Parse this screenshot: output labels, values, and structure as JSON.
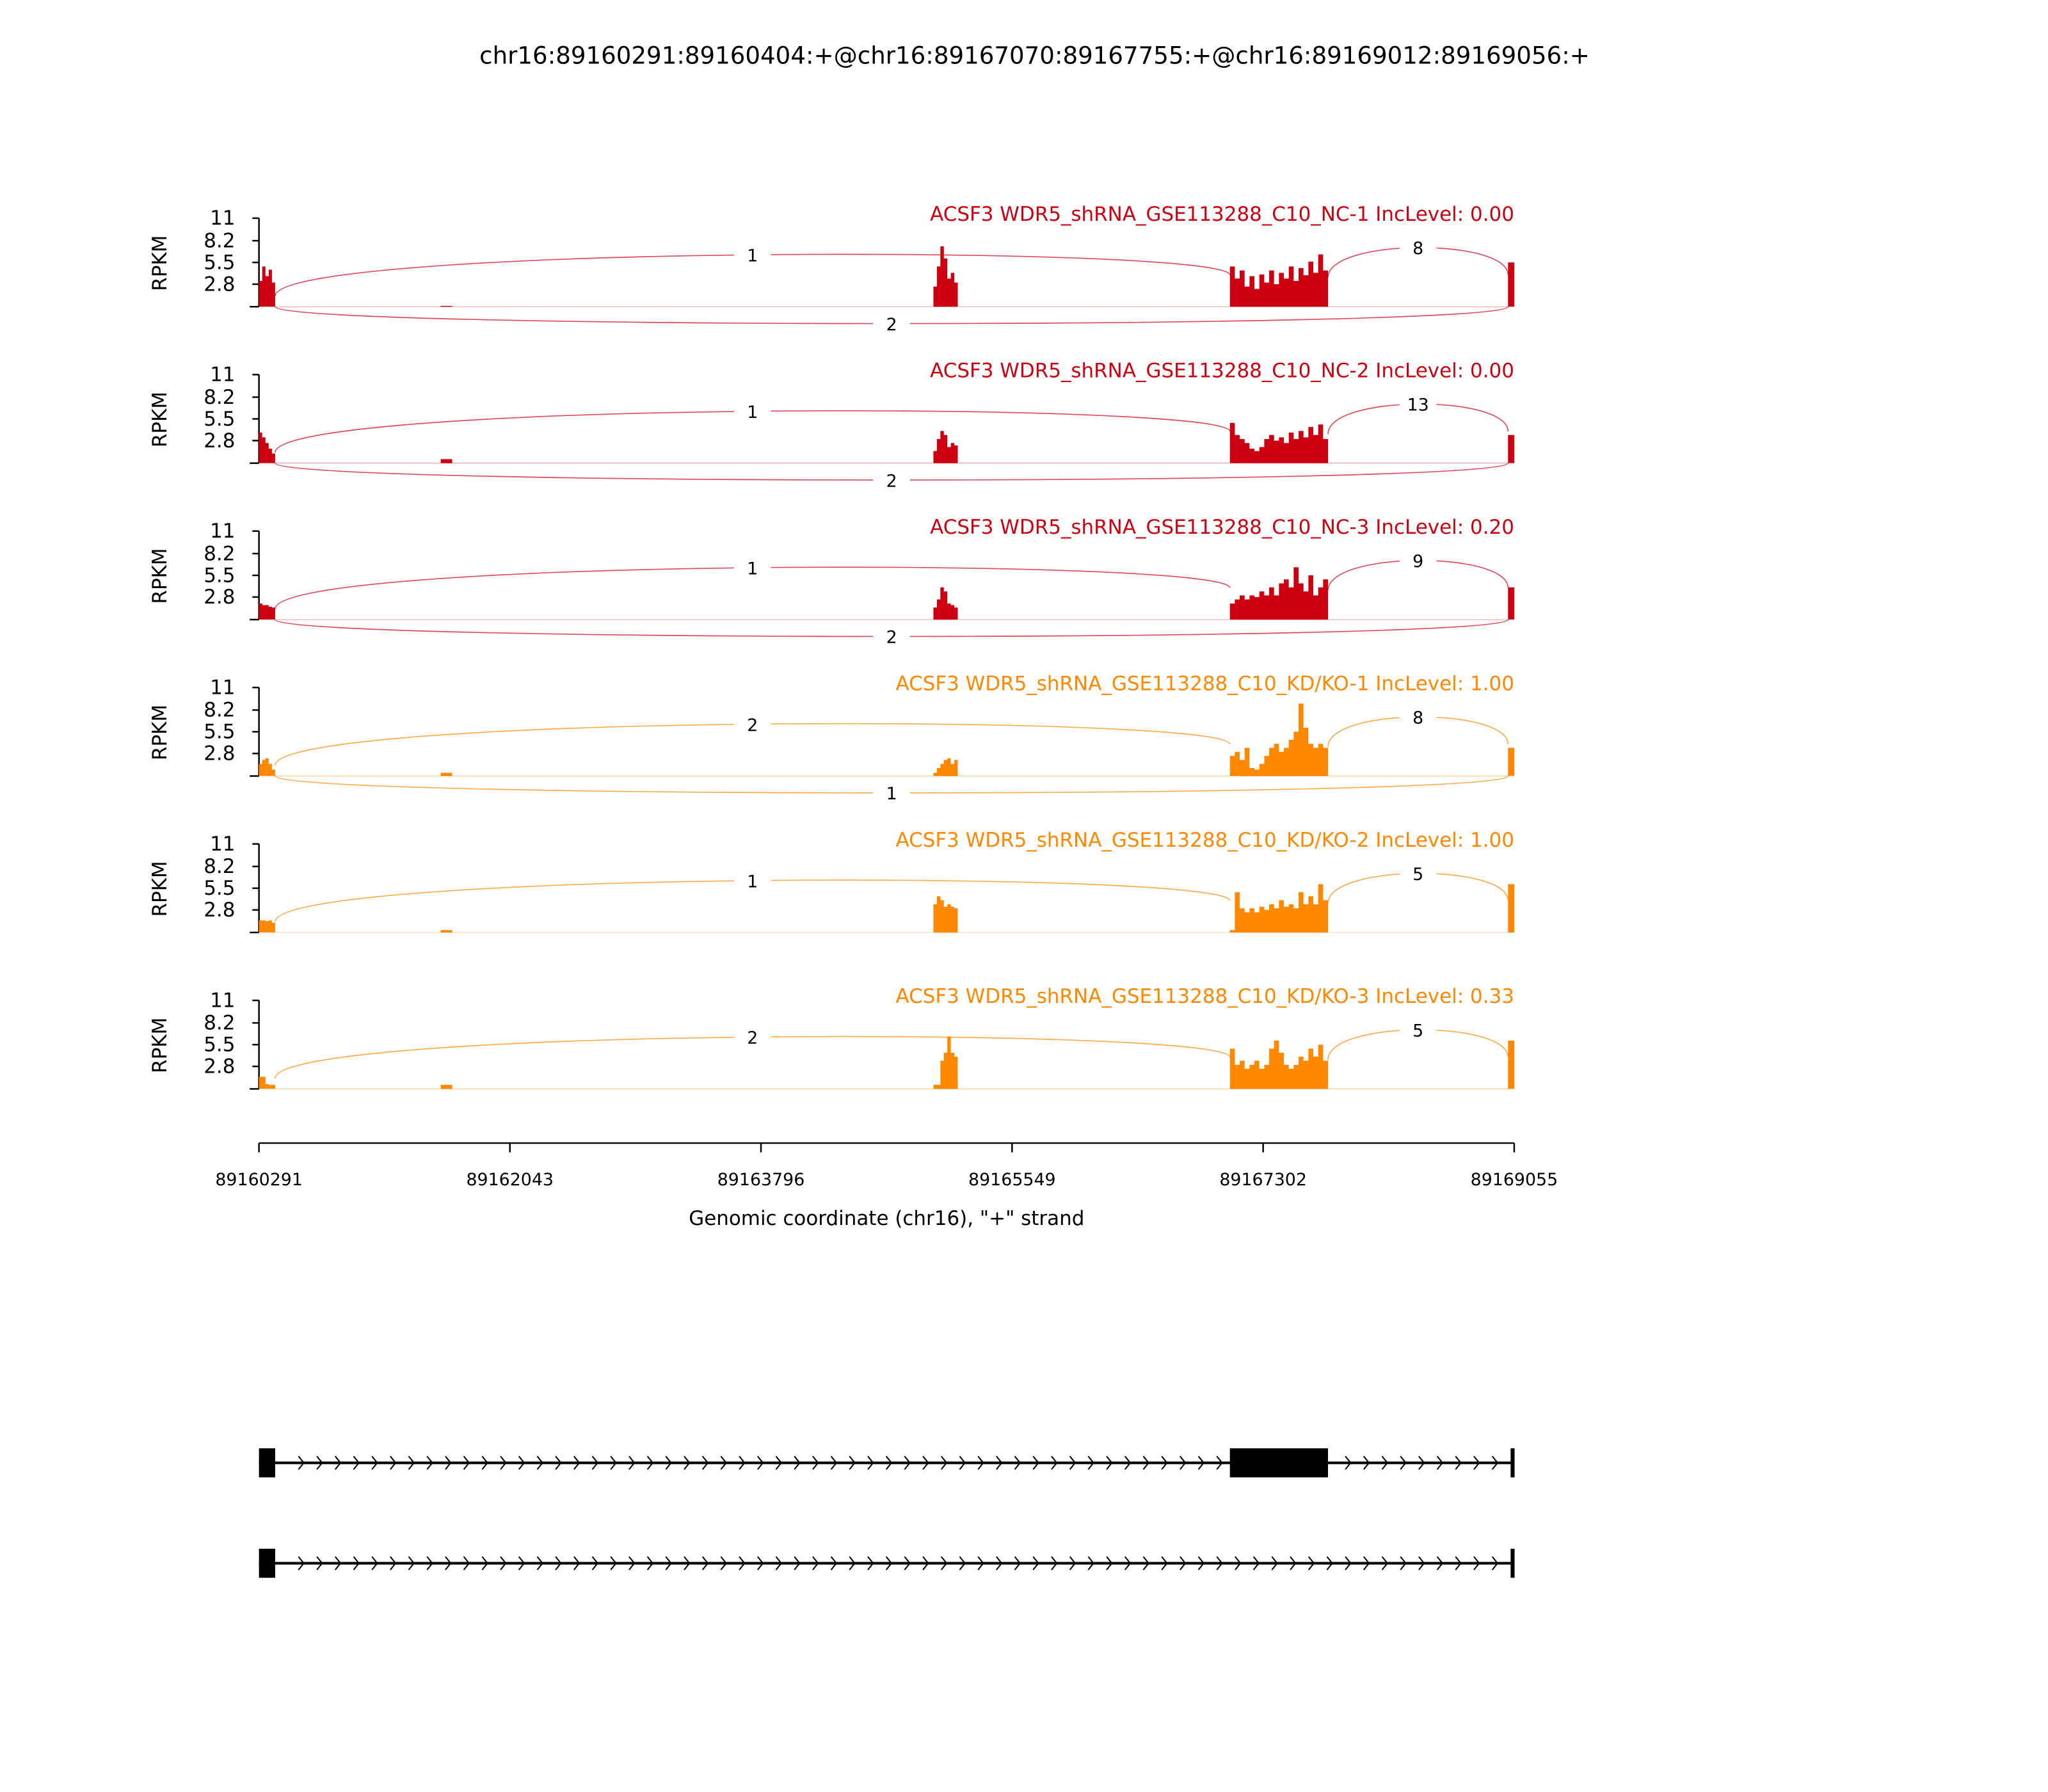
{
  "chart_data": {
    "type": "area",
    "title": "chr16:89160291:89160404:+@chr16:89167070:89167755:+@chr16:89169012:89169056:+",
    "xlabel": "Genomic coordinate (chr16), \"+\" strand",
    "ylabel": "RPKM",
    "xlim": [
      89160291,
      89169055
    ],
    "ylim": [
      0,
      11
    ],
    "yticks": [
      "11",
      "8.2",
      "5.5",
      "2.8"
    ],
    "ytick_values": [
      11,
      8.2,
      5.5,
      2.8
    ],
    "xticks": [
      89160291,
      89162043,
      89163796,
      89165549,
      89167302,
      89169055
    ],
    "regions": {
      "exon1": [
        89160291,
        89160404
      ],
      "small": [
        89161560,
        89161640
      ],
      "peak": [
        89165000,
        89165170
      ],
      "exon2": [
        89167070,
        89167755
      ],
      "exon3": [
        89169012,
        89169056
      ]
    },
    "samples": [
      {
        "title": "ACSF3 WDR5_shRNA_GSE113288_C10_NC-1 IncLevel: 0.00",
        "color": "#cc0011",
        "junctions": {
          "upstream": "1",
          "downstream": "8",
          "skip": "2"
        },
        "coverage": {
          "exon1": [
            3.2,
            5.0,
            3.8,
            4.6,
            3.0
          ],
          "small": [
            0.1
          ],
          "peak": [
            2.5,
            5.0,
            7.5,
            6.0,
            3.5,
            4.2,
            3.0
          ],
          "exon2": [
            5.0,
            3.5,
            4.5,
            2.5,
            3.8,
            2.2,
            4.0,
            3.0,
            4.5,
            2.8,
            4.2,
            3.5,
            5.0,
            3.2,
            4.8,
            3.9,
            5.6,
            4.2,
            6.5,
            4.5
          ],
          "exon3": [
            5.5
          ]
        }
      },
      {
        "title": "ACSF3 WDR5_shRNA_GSE113288_C10_NC-2 IncLevel: 0.00",
        "color": "#cc0011",
        "junctions": {
          "upstream": "1",
          "downstream": "13",
          "skip": "2"
        },
        "coverage": {
          "exon1": [
            3.8,
            3.2,
            2.5,
            1.8,
            1.2
          ],
          "small": [
            0.5
          ],
          "peak": [
            1.5,
            3.0,
            4.0,
            3.5,
            2.0,
            2.5,
            2.2
          ],
          "exon2": [
            5.0,
            3.5,
            3.0,
            2.5,
            1.8,
            1.5,
            2.0,
            3.0,
            3.5,
            2.8,
            3.2,
            2.5,
            3.8,
            3.0,
            4.0,
            3.2,
            4.5,
            3.5,
            4.8,
            3.0
          ],
          "exon3": [
            3.5
          ]
        }
      },
      {
        "title": "ACSF3 WDR5_shRNA_GSE113288_C10_NC-3 IncLevel: 0.20",
        "color": "#cc0011",
        "junctions": {
          "upstream": "1",
          "downstream": "9",
          "skip": "2"
        },
        "coverage": {
          "exon1": [
            2.0,
            1.8,
            1.8,
            1.6,
            1.5
          ],
          "small": [
            0.0
          ],
          "peak": [
            1.5,
            2.5,
            4.0,
            3.5,
            2.0,
            1.8,
            1.5
          ],
          "exon2": [
            2.0,
            2.5,
            3.0,
            2.5,
            3.0,
            2.8,
            3.5,
            3.0,
            4.0,
            3.0,
            4.5,
            5.0,
            4.0,
            6.5,
            4.5,
            3.5,
            5.5,
            3.0,
            4.0,
            5.0
          ],
          "exon3": [
            4.0
          ]
        }
      },
      {
        "title": "ACSF3 WDR5_shRNA_GSE113288_C10_KD/KO-1 IncLevel: 1.00",
        "color": "#ff8800",
        "junctions": {
          "upstream": "2",
          "downstream": "8",
          "skip": "1"
        },
        "coverage": {
          "exon1": [
            1.5,
            2.0,
            2.2,
            1.5,
            0.8
          ],
          "small": [
            0.4
          ],
          "peak": [
            0.4,
            1.0,
            1.5,
            2.0,
            2.2,
            1.5,
            2.0
          ],
          "exon2": [
            2.5,
            3.0,
            2.0,
            3.5,
            1.0,
            0.8,
            1.5,
            2.5,
            3.5,
            4.0,
            3.0,
            3.5,
            4.5,
            5.5,
            9.0,
            6.0,
            4.0,
            3.5,
            4.0,
            3.5
          ],
          "exon3": [
            3.5
          ]
        }
      },
      {
        "title": "ACSF3 WDR5_shRNA_GSE113288_C10_KD/KO-2 IncLevel: 1.00",
        "color": "#ff8800",
        "junctions": {
          "upstream": "1",
          "downstream": "5",
          "skip": null
        },
        "coverage": {
          "exon1": [
            1.5,
            1.5,
            1.4,
            1.5,
            1.2
          ],
          "small": [
            0.3
          ],
          "peak": [
            3.5,
            4.5,
            4.0,
            3.2,
            3.5,
            3.2,
            3.0
          ],
          "exon2": [
            0.3,
            5.0,
            3.0,
            2.5,
            3.0,
            2.5,
            3.2,
            2.8,
            3.5,
            3.0,
            4.0,
            3.2,
            3.5,
            3.0,
            5.0,
            3.5,
            4.5,
            3.5,
            6.0,
            4.0
          ],
          "exon3": [
            6.0
          ]
        }
      },
      {
        "title": "ACSF3 WDR5_shRNA_GSE113288_C10_KD/KO-3 IncLevel: 0.33",
        "color": "#ff8800",
        "junctions": {
          "upstream": "2",
          "downstream": "5",
          "skip": null
        },
        "coverage": {
          "exon1": [
            1.5,
            1.5,
            0.6,
            0.5,
            0.5
          ],
          "small": [
            0.5
          ],
          "peak": [
            0.5,
            0.5,
            3.5,
            4.5,
            6.5,
            4.5,
            4.0
          ],
          "exon2": [
            5.0,
            3.0,
            3.5,
            2.5,
            3.0,
            3.5,
            2.5,
            3.0,
            5.0,
            6.0,
            4.5,
            3.0,
            2.5,
            3.0,
            4.0,
            3.5,
            5.0,
            4.0,
            5.5,
            3.5
          ],
          "exon3": [
            6.0
          ]
        }
      }
    ],
    "gene_models": [
      {
        "exons": [
          [
            89160291,
            89160404
          ],
          [
            89167070,
            89167755
          ],
          [
            89169030,
            89169056
          ]
        ]
      },
      {
        "exons": [
          [
            89160291,
            89160404
          ],
          [
            89169030,
            89169056
          ]
        ]
      }
    ]
  }
}
